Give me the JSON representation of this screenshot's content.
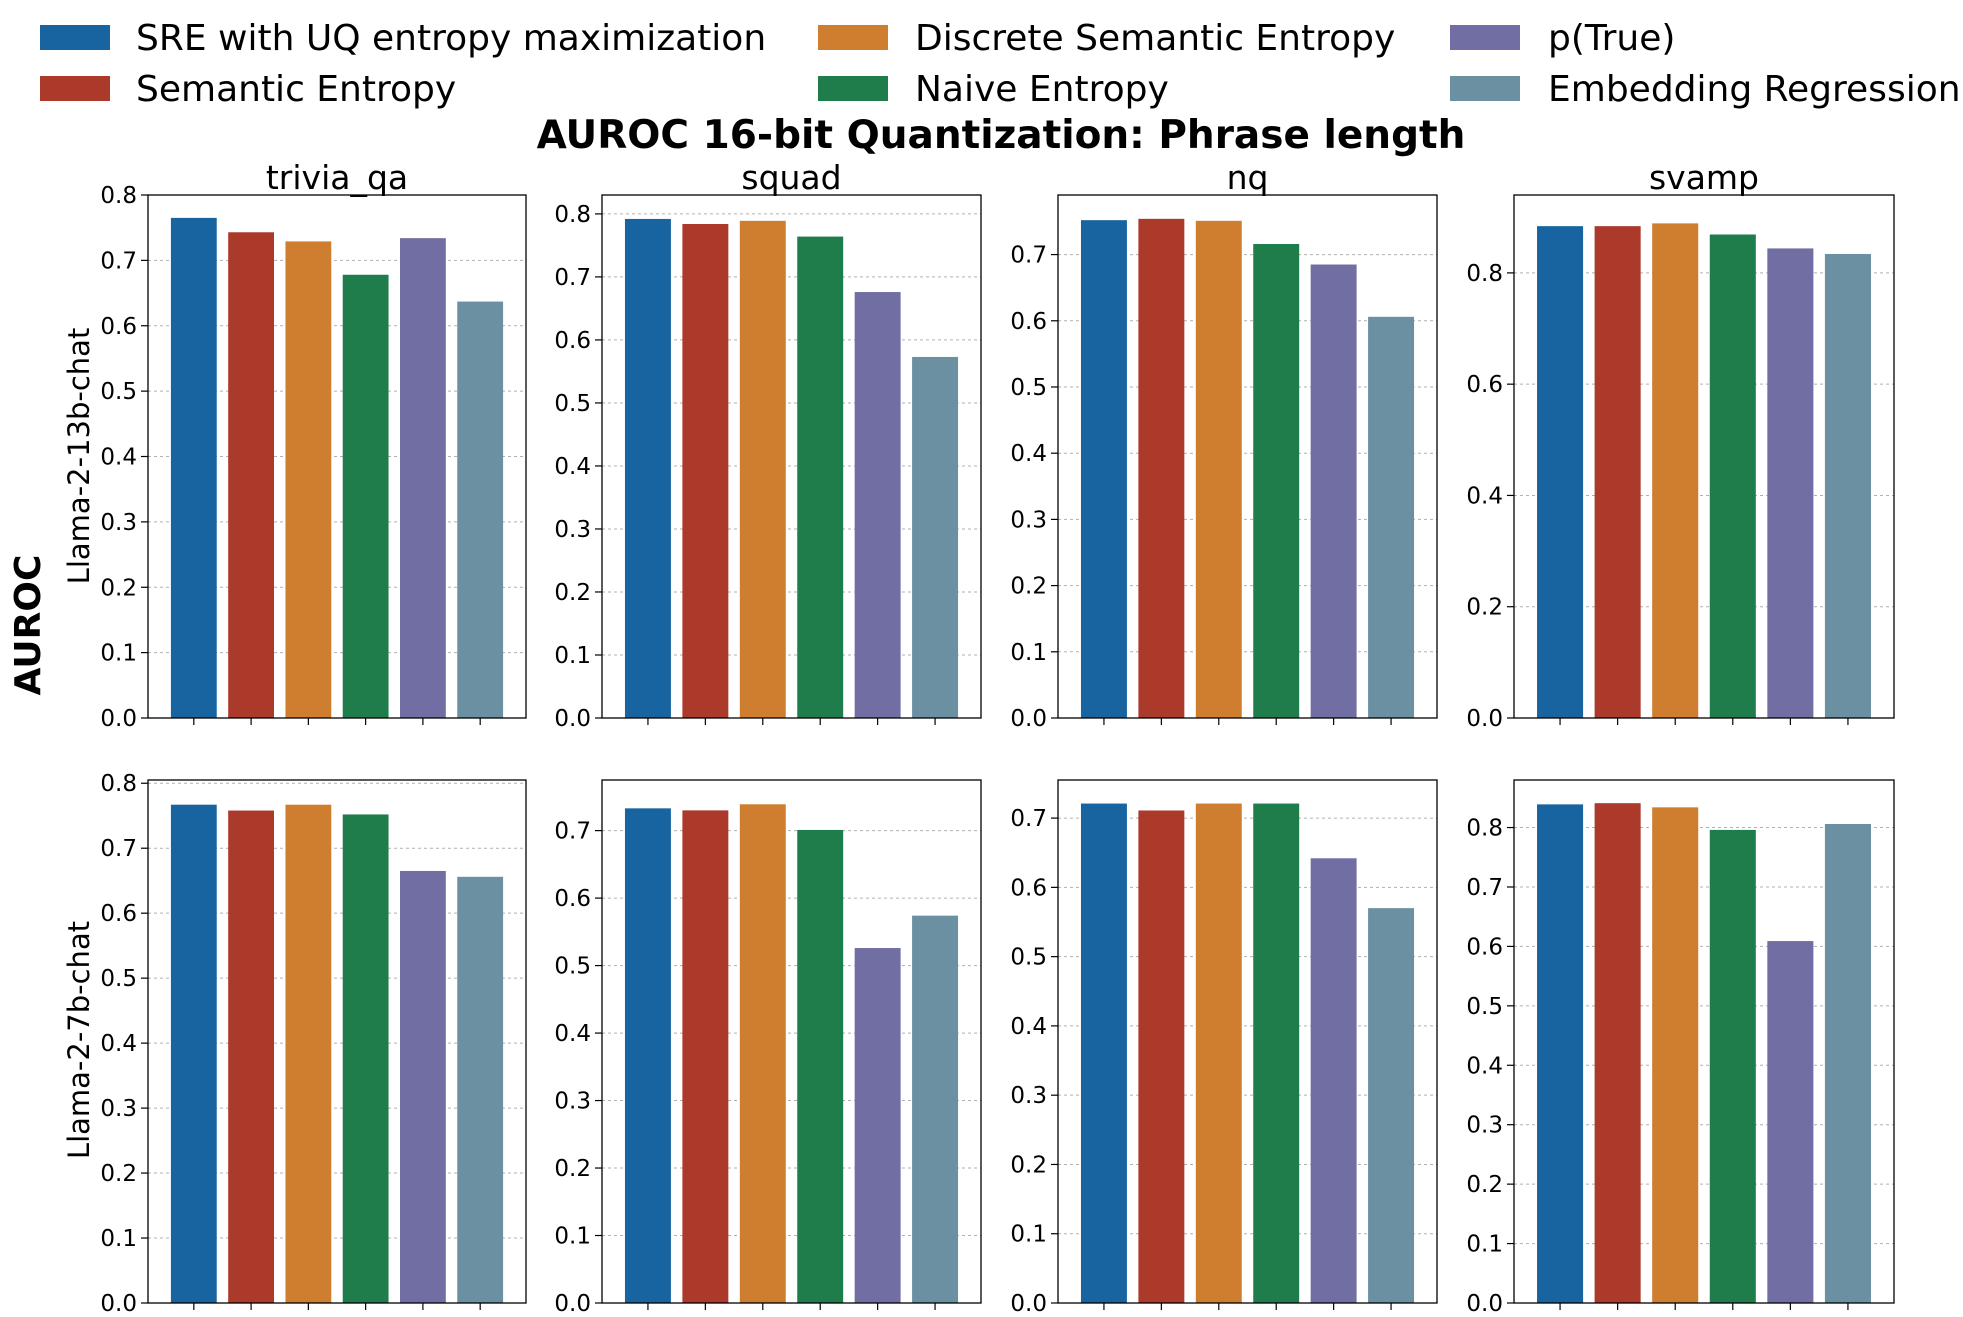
{
  "title": "AUROC 16-bit Quantization: Phrase length",
  "ylabel": "AUROC",
  "legend": {
    "placement": "top",
    "items": [
      {
        "label": "SRE with UQ entropy maximization",
        "color": "#1764a0"
      },
      {
        "label": "Semantic Entropy",
        "color": "#ab3a2b"
      },
      {
        "label": "Discrete Semantic Entropy",
        "color": "#cf7d2e"
      },
      {
        "label": "Naive Entropy",
        "color": "#1e7d4b"
      },
      {
        "label": "p(True)",
        "color": "#716ea3"
      },
      {
        "label": "Embedding Regression",
        "color": "#6a90a2"
      }
    ]
  },
  "chart_data": [
    {
      "type": "bar",
      "row_label": "Llama-2-13b-chat",
      "title": "trivia_qa",
      "ylim": [
        0,
        0.8
      ],
      "yticks": [
        0.0,
        0.1,
        0.2,
        0.3,
        0.4,
        0.5,
        0.6,
        0.7,
        0.8
      ],
      "tick_decimals": 1,
      "grid": true,
      "categories": [
        "SRE with UQ entropy maximization",
        "Semantic Entropy",
        "Discrete Semantic Entropy",
        "Naive Entropy",
        "p(True)",
        "Embedding Regression"
      ],
      "values": [
        0.765,
        0.743,
        0.729,
        0.678,
        0.734,
        0.637
      ]
    },
    {
      "type": "bar",
      "row_label": "Llama-2-13b-chat",
      "title": "squad",
      "ylim": [
        0,
        0.83
      ],
      "yticks": [
        0.0,
        0.1,
        0.2,
        0.3,
        0.4,
        0.5,
        0.6,
        0.7,
        0.8
      ],
      "tick_decimals": 1,
      "grid": true,
      "categories": [
        "SRE with UQ entropy maximization",
        "Semantic Entropy",
        "Discrete Semantic Entropy",
        "Naive Entropy",
        "p(True)",
        "Embedding Regression"
      ],
      "values": [
        0.792,
        0.784,
        0.789,
        0.764,
        0.676,
        0.573
      ]
    },
    {
      "type": "bar",
      "row_label": "Llama-2-13b-chat",
      "title": "nq",
      "ylim": [
        0,
        0.79
      ],
      "yticks": [
        0.0,
        0.1,
        0.2,
        0.3,
        0.4,
        0.5,
        0.6,
        0.7
      ],
      "tick_decimals": 1,
      "grid": true,
      "categories": [
        "SRE with UQ entropy maximization",
        "Semantic Entropy",
        "Discrete Semantic Entropy",
        "Naive Entropy",
        "p(True)",
        "Embedding Regression"
      ],
      "values": [
        0.752,
        0.754,
        0.751,
        0.716,
        0.685,
        0.606
      ]
    },
    {
      "type": "bar",
      "row_label": "Llama-2-13b-chat",
      "title": "svamp",
      "ylim": [
        0,
        0.94
      ],
      "yticks": [
        0.0,
        0.2,
        0.4,
        0.6,
        0.8
      ],
      "tick_decimals": 1,
      "grid": true,
      "categories": [
        "SRE with UQ entropy maximization",
        "Semantic Entropy",
        "Discrete Semantic Entropy",
        "Naive Entropy",
        "p(True)",
        "Embedding Regression"
      ],
      "values": [
        0.884,
        0.884,
        0.889,
        0.869,
        0.844,
        0.834
      ]
    },
    {
      "type": "bar",
      "row_label": "Llama-2-7b-chat",
      "title": "",
      "ylim": [
        0,
        0.805
      ],
      "yticks": [
        0.0,
        0.1,
        0.2,
        0.3,
        0.4,
        0.5,
        0.6,
        0.7,
        0.8
      ],
      "tick_decimals": 1,
      "grid": true,
      "categories": [
        "SRE with UQ entropy maximization",
        "Semantic Entropy",
        "Discrete Semantic Entropy",
        "Naive Entropy",
        "p(True)",
        "Embedding Regression"
      ],
      "values": [
        0.767,
        0.758,
        0.767,
        0.752,
        0.665,
        0.656
      ]
    },
    {
      "type": "bar",
      "row_label": "Llama-2-7b-chat",
      "title": "",
      "ylim": [
        0,
        0.775
      ],
      "yticks": [
        0.0,
        0.1,
        0.2,
        0.3,
        0.4,
        0.5,
        0.6,
        0.7
      ],
      "tick_decimals": 1,
      "grid": true,
      "categories": [
        "SRE with UQ entropy maximization",
        "Semantic Entropy",
        "Discrete Semantic Entropy",
        "Naive Entropy",
        "p(True)",
        "Embedding Regression"
      ],
      "values": [
        0.733,
        0.73,
        0.739,
        0.701,
        0.526,
        0.574
      ]
    },
    {
      "type": "bar",
      "row_label": "Llama-2-7b-chat",
      "title": "",
      "ylim": [
        0,
        0.755
      ],
      "yticks": [
        0.0,
        0.1,
        0.2,
        0.3,
        0.4,
        0.5,
        0.6,
        0.7
      ],
      "tick_decimals": 1,
      "grid": true,
      "categories": [
        "SRE with UQ entropy maximization",
        "Semantic Entropy",
        "Discrete Semantic Entropy",
        "Naive Entropy",
        "p(True)",
        "Embedding Regression"
      ],
      "values": [
        0.721,
        0.711,
        0.721,
        0.721,
        0.642,
        0.57
      ]
    },
    {
      "type": "bar",
      "row_label": "Llama-2-7b-chat",
      "title": "",
      "ylim": [
        0,
        0.88
      ],
      "yticks": [
        0.0,
        0.1,
        0.2,
        0.3,
        0.4,
        0.5,
        0.6,
        0.7,
        0.8
      ],
      "tick_decimals": 1,
      "grid": true,
      "categories": [
        "SRE with UQ entropy maximization",
        "Semantic Entropy",
        "Discrete Semantic Entropy",
        "Naive Entropy",
        "p(True)",
        "Embedding Regression"
      ],
      "values": [
        0.839,
        0.841,
        0.834,
        0.796,
        0.609,
        0.806
      ]
    }
  ]
}
